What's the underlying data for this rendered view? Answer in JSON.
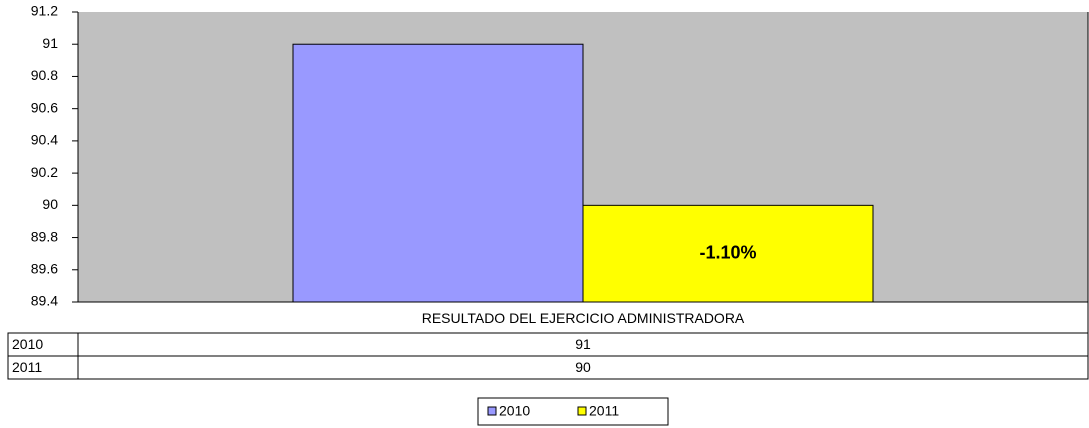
{
  "chart_data": {
    "type": "bar",
    "categories": [
      "RESULTADO DEL EJERCICIO  ADMINISTRADORA"
    ],
    "series": [
      {
        "name": "2010",
        "color": "#9999ff",
        "values": [
          91
        ]
      },
      {
        "name": "2011",
        "color": "#ffff00",
        "values": [
          90
        ]
      }
    ],
    "annotation": "-1.10%",
    "ylim": [
      89.4,
      91.2
    ],
    "yticks": [
      89.4,
      89.6,
      89.8,
      90,
      90.2,
      90.4,
      90.6,
      90.8,
      91,
      91.2
    ],
    "grid": false,
    "plot_background": "#c0c0c0",
    "legend": "bottom"
  }
}
